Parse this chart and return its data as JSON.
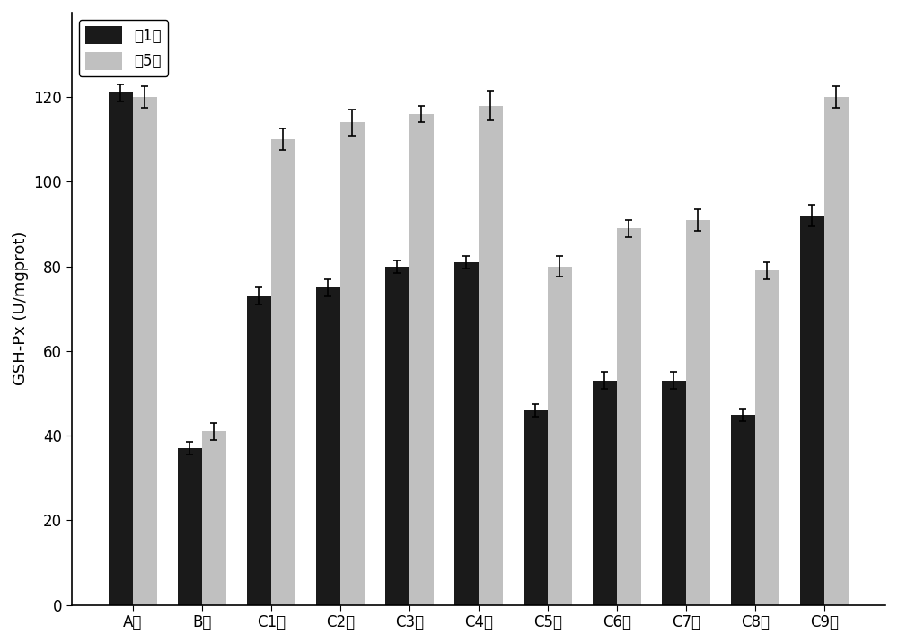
{
  "categories": [
    "A组",
    "B组",
    "C1组",
    "C2组",
    "C3组",
    "C4组",
    "C5组",
    "C6组",
    "C7组",
    "C8组",
    "C9组"
  ],
  "week1_values": [
    121,
    37,
    73,
    75,
    80,
    81,
    46,
    53,
    53,
    45,
    92
  ],
  "week5_values": [
    120,
    41,
    110,
    114,
    116,
    118,
    80,
    89,
    91,
    79,
    120
  ],
  "week1_errors": [
    2.0,
    1.5,
    2.0,
    2.0,
    1.5,
    1.5,
    1.5,
    2.0,
    2.0,
    1.5,
    2.5
  ],
  "week5_errors": [
    2.5,
    2.0,
    2.5,
    3.0,
    2.0,
    3.5,
    2.5,
    2.0,
    2.5,
    2.0,
    2.5
  ],
  "week1_color": "#1a1a1a",
  "week5_color": "#c0c0c0",
  "ylabel": "GSH-Px (U/mgprot)",
  "legend_week1": "共1周",
  "legend_week5": "共5周",
  "ylim": [
    0,
    140
  ],
  "yticks": [
    0,
    20,
    40,
    60,
    80,
    100,
    120
  ],
  "bar_width": 0.35,
  "figsize": [
    10.0,
    7.16
  ],
  "dpi": 100
}
